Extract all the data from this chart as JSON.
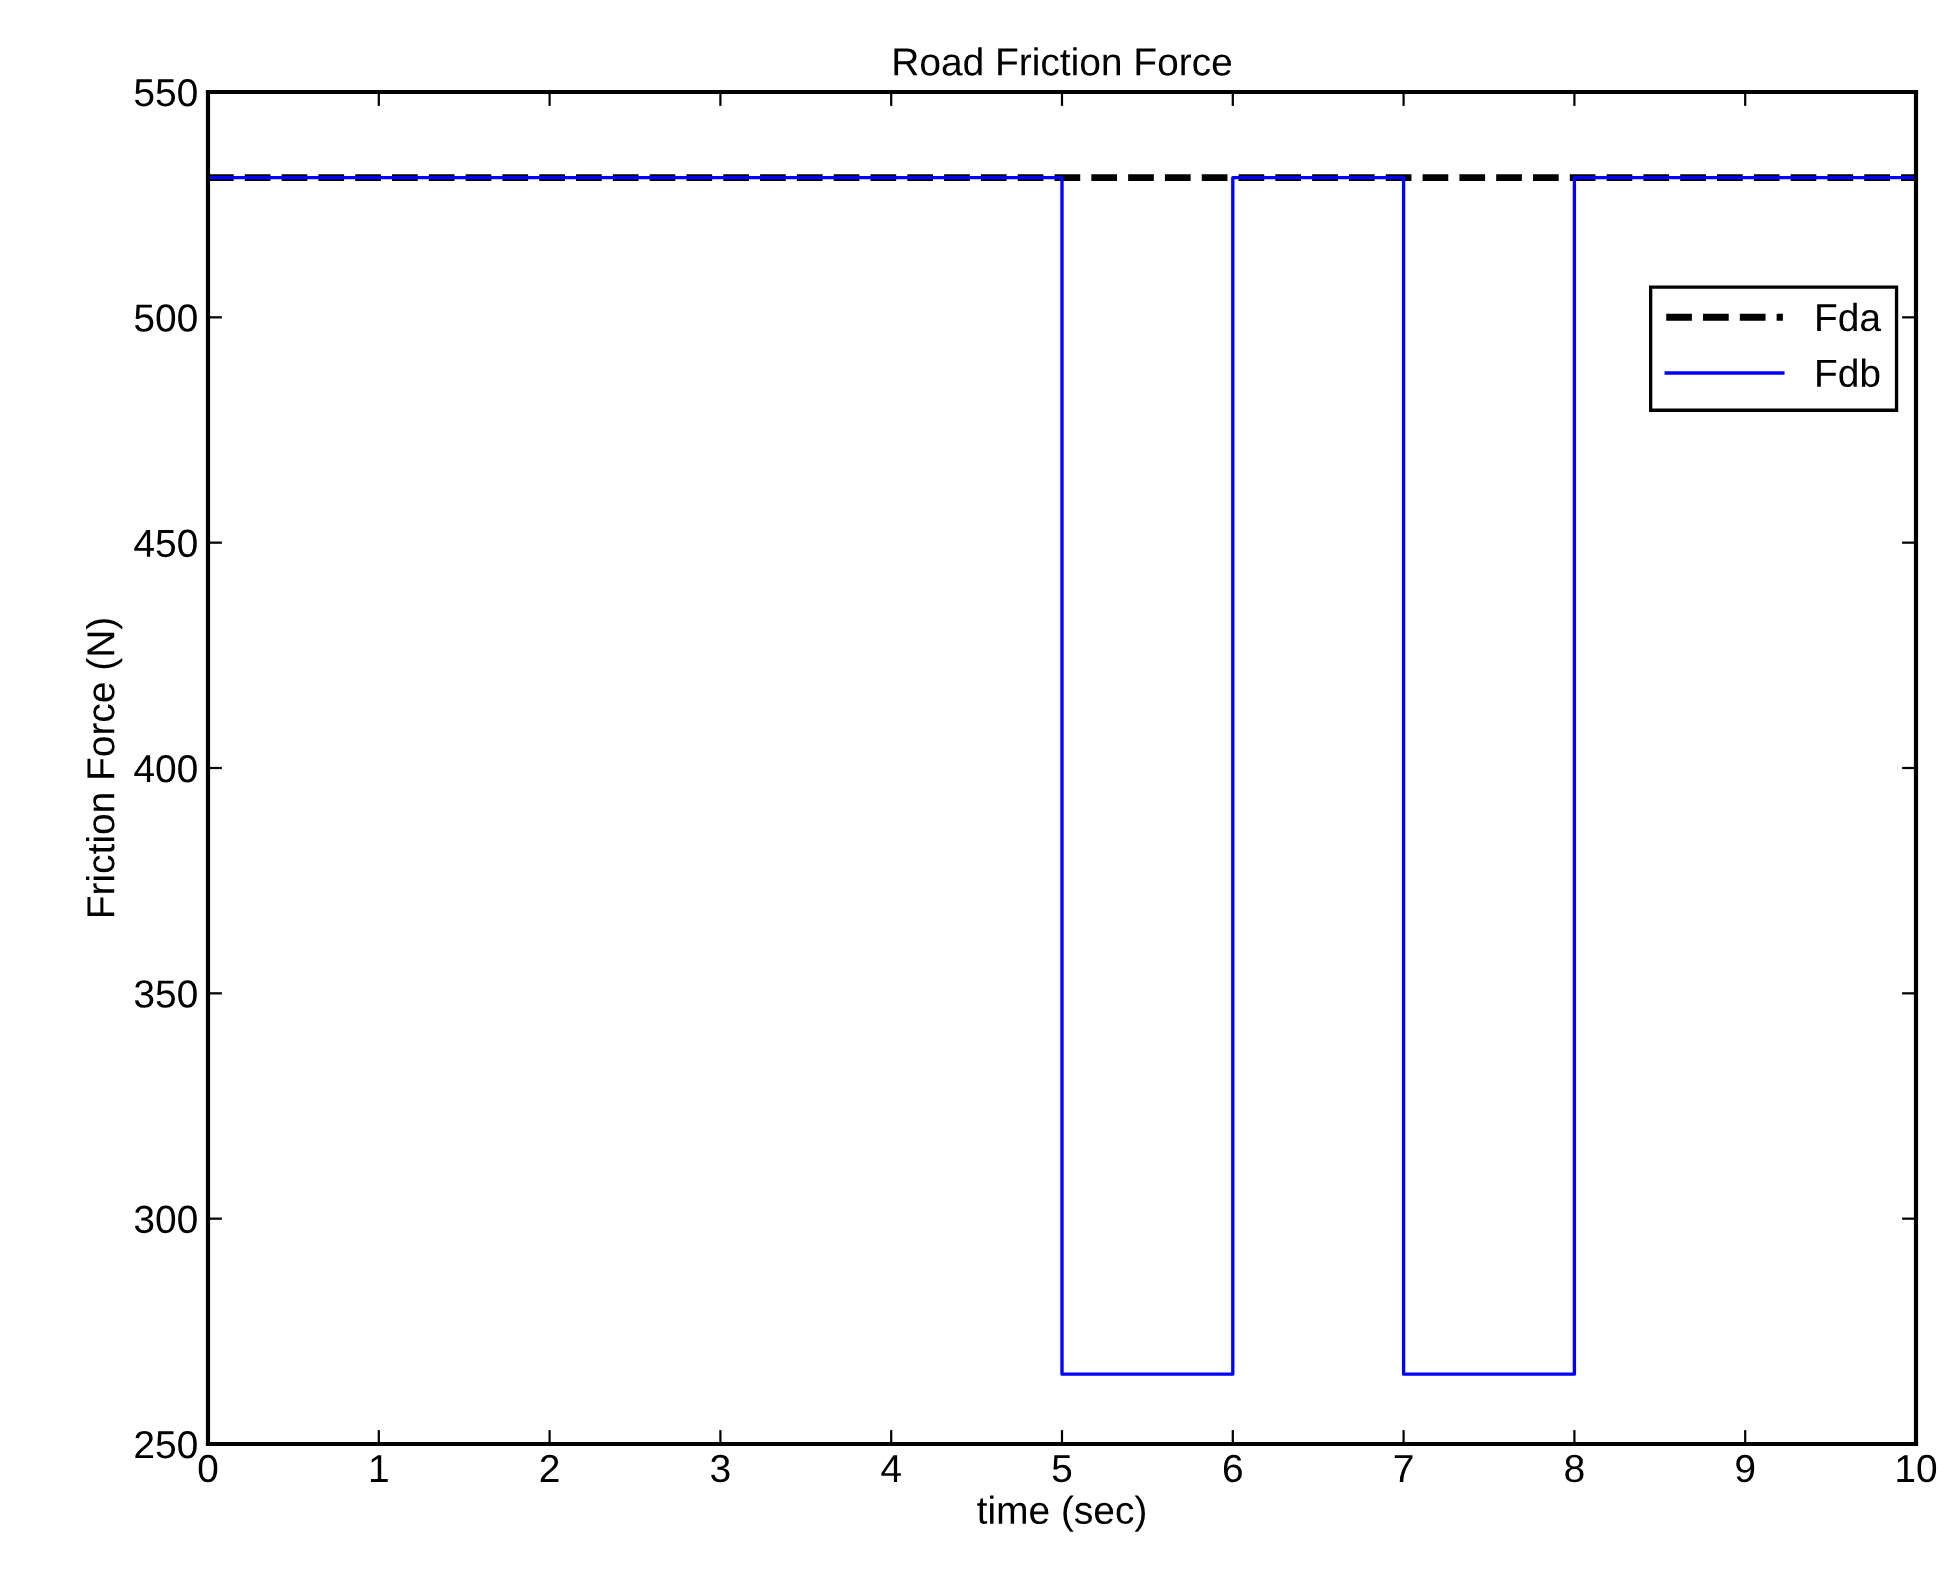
{
  "chart_data": {
    "type": "line",
    "title": "Road Friction Force",
    "xlabel": "time (sec)",
    "ylabel": "Friction Force (N)",
    "series": [
      {
        "name": "Fda",
        "color": "#000000",
        "line_style": "dashed",
        "x": [
          0,
          10
        ],
        "values": [
          531,
          531
        ]
      },
      {
        "name": "Fdb",
        "color": "#0000ff",
        "line_style": "solid",
        "x": [
          0,
          5,
          5,
          6,
          6,
          7,
          7,
          8,
          8,
          10
        ],
        "values": [
          531,
          531,
          265.5,
          265.5,
          531,
          531,
          265.5,
          265.5,
          531,
          531
        ]
      }
    ],
    "xlim": [
      0,
      10
    ],
    "xticks": [
      0,
      1,
      2,
      3,
      4,
      5,
      6,
      7,
      8,
      9,
      10
    ],
    "ylim": [
      250,
      550
    ],
    "yticks": [
      250,
      300,
      350,
      400,
      450,
      500,
      550
    ],
    "grid": false,
    "legend": "top right",
    "marker": "none"
  }
}
